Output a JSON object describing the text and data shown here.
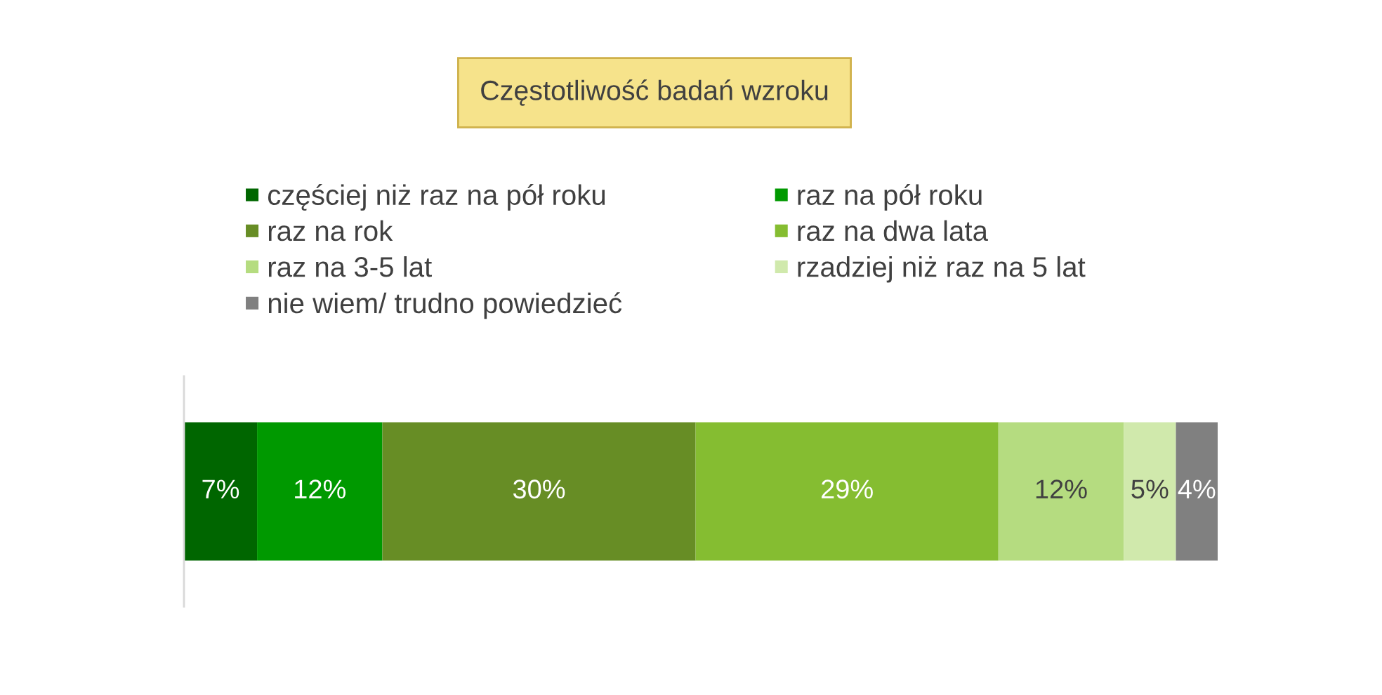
{
  "chart_data": {
    "type": "bar",
    "orientation": "horizontal",
    "stacked": true,
    "title": "Częstotliwość badań wzroku",
    "categories": [
      null
    ],
    "series": [
      {
        "name": "częściej niż raz na pół roku",
        "color": "#006600",
        "values": [
          7
        ],
        "value_labels": [
          "7%"
        ]
      },
      {
        "name": "raz na pół roku",
        "color": "#009900",
        "values": [
          12
        ],
        "value_labels": [
          "12%"
        ]
      },
      {
        "name": "raz na rok",
        "color": "#678d25",
        "values": [
          30
        ],
        "value_labels": [
          "30%"
        ]
      },
      {
        "name": "raz na dwa lata",
        "color": "#85bd31",
        "values": [
          29
        ],
        "value_labels": [
          "29%"
        ]
      },
      {
        "name": "raz na 3-5 lat",
        "color": "#b5dc80",
        "values": [
          12
        ],
        "value_labels": [
          "12%"
        ]
      },
      {
        "name": "rzadziej niż raz na 5 lat",
        "color": "#d0e9ac",
        "values": [
          5
        ],
        "value_labels": [
          "5%"
        ]
      },
      {
        "name": "nie wiem/ trudno powiedzieć",
        "color": "#808080",
        "values": [
          4
        ],
        "value_labels": [
          "4%"
        ]
      }
    ],
    "legend": "top",
    "tick_labels": false
  }
}
